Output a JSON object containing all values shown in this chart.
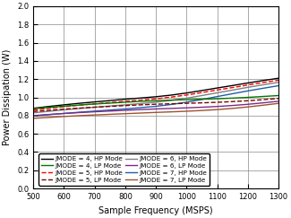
{
  "title": "",
  "xlabel": "Sample Frequency (MSPS)",
  "ylabel": "Power Dissipation (W)",
  "xlim": [
    500,
    1300
  ],
  "ylim": [
    0,
    2
  ],
  "xticks": [
    500,
    600,
    700,
    800,
    900,
    1000,
    1100,
    1200,
    1300
  ],
  "yticks": [
    0,
    0.2,
    0.4,
    0.6,
    0.8,
    1.0,
    1.2,
    1.4,
    1.6,
    1.8,
    2.0
  ],
  "x": [
    500,
    550,
    600,
    650,
    700,
    750,
    800,
    850,
    900,
    950,
    1000,
    1050,
    1100,
    1150,
    1200,
    1250,
    1300
  ],
  "series": [
    {
      "label": "JMODE = 4, HP Mode",
      "color": "#000000",
      "linestyle": "-",
      "linewidth": 1.0,
      "y": [
        0.88,
        0.9,
        0.918,
        0.935,
        0.95,
        0.965,
        0.98,
        0.993,
        1.007,
        1.025,
        1.048,
        1.075,
        1.103,
        1.13,
        1.158,
        1.185,
        1.21
      ]
    },
    {
      "label": "JMODE = 5, HP Mode",
      "color": "#FF0000",
      "linestyle": "--",
      "linewidth": 1.0,
      "y": [
        0.86,
        0.88,
        0.898,
        0.914,
        0.929,
        0.943,
        0.957,
        0.97,
        0.984,
        1.003,
        1.026,
        1.053,
        1.081,
        1.108,
        1.136,
        1.163,
        1.188
      ]
    },
    {
      "label": "JMODE = 6, HP Mode",
      "color": "#808080",
      "linestyle": "-",
      "linewidth": 1.0,
      "y": [
        0.83,
        0.847,
        0.863,
        0.878,
        0.892,
        0.905,
        0.918,
        0.932,
        0.947,
        0.967,
        0.991,
        1.02,
        1.05,
        1.08,
        1.11,
        1.138,
        1.165
      ]
    },
    {
      "label": "JMODE = 7, HP Mode",
      "color": "#1F5FA6",
      "linestyle": "-",
      "linewidth": 1.0,
      "y": [
        0.795,
        0.81,
        0.824,
        0.837,
        0.849,
        0.861,
        0.873,
        0.887,
        0.902,
        0.922,
        0.947,
        0.977,
        1.009,
        1.04,
        1.071,
        1.1,
        1.128
      ]
    },
    {
      "label": "JMODE = 4, LP Mode",
      "color": "#007700",
      "linestyle": "-",
      "linewidth": 1.0,
      "y": [
        0.875,
        0.89,
        0.903,
        0.916,
        0.927,
        0.937,
        0.947,
        0.956,
        0.964,
        0.97,
        0.975,
        0.98,
        0.985,
        0.992,
        1.0,
        1.01,
        1.02
      ]
    },
    {
      "label": "JMODE = 5, LP Mode",
      "color": "#800000",
      "linestyle": "--",
      "linewidth": 1.0,
      "y": [
        0.845,
        0.858,
        0.871,
        0.882,
        0.892,
        0.901,
        0.91,
        0.918,
        0.925,
        0.93,
        0.935,
        0.94,
        0.946,
        0.954,
        0.963,
        0.975,
        0.988
      ]
    },
    {
      "label": "JMODE = 6, LP Mode",
      "color": "#7B2D8B",
      "linestyle": "-",
      "linewidth": 1.0,
      "y": [
        0.8,
        0.812,
        0.823,
        0.833,
        0.842,
        0.85,
        0.858,
        0.866,
        0.873,
        0.879,
        0.885,
        0.892,
        0.9,
        0.911,
        0.924,
        0.94,
        0.957
      ]
    },
    {
      "label": "JMODE = 7, LP Mode",
      "color": "#A0522D",
      "linestyle": "-",
      "linewidth": 1.0,
      "y": [
        0.77,
        0.78,
        0.79,
        0.799,
        0.807,
        0.814,
        0.821,
        0.828,
        0.835,
        0.841,
        0.848,
        0.856,
        0.866,
        0.879,
        0.895,
        0.914,
        0.934
      ]
    }
  ],
  "legend_ncol": 2,
  "legend_fontsize": 5.2,
  "axis_fontsize": 7,
  "tick_fontsize": 6,
  "grid_color": "#888888",
  "grid_linewidth": 0.5
}
